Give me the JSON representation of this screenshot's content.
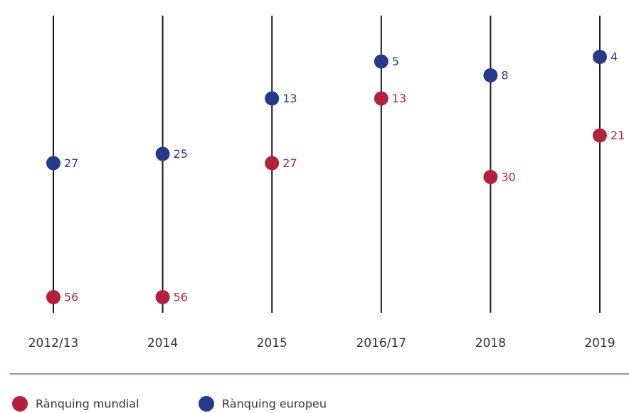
{
  "chart_data": {
    "type": "dot",
    "categories": [
      "2012/13",
      "2014",
      "2015",
      "2016/17",
      "2018",
      "2019"
    ],
    "series": [
      {
        "name": "Rànquing mundial",
        "color": "#b5213a",
        "values": [
          56,
          56,
          27,
          13,
          30,
          21
        ]
      },
      {
        "name": "Rànquing europeu",
        "color": "#253a8c",
        "values": [
          27,
          25,
          13,
          5,
          8,
          4
        ]
      }
    ]
  }
}
